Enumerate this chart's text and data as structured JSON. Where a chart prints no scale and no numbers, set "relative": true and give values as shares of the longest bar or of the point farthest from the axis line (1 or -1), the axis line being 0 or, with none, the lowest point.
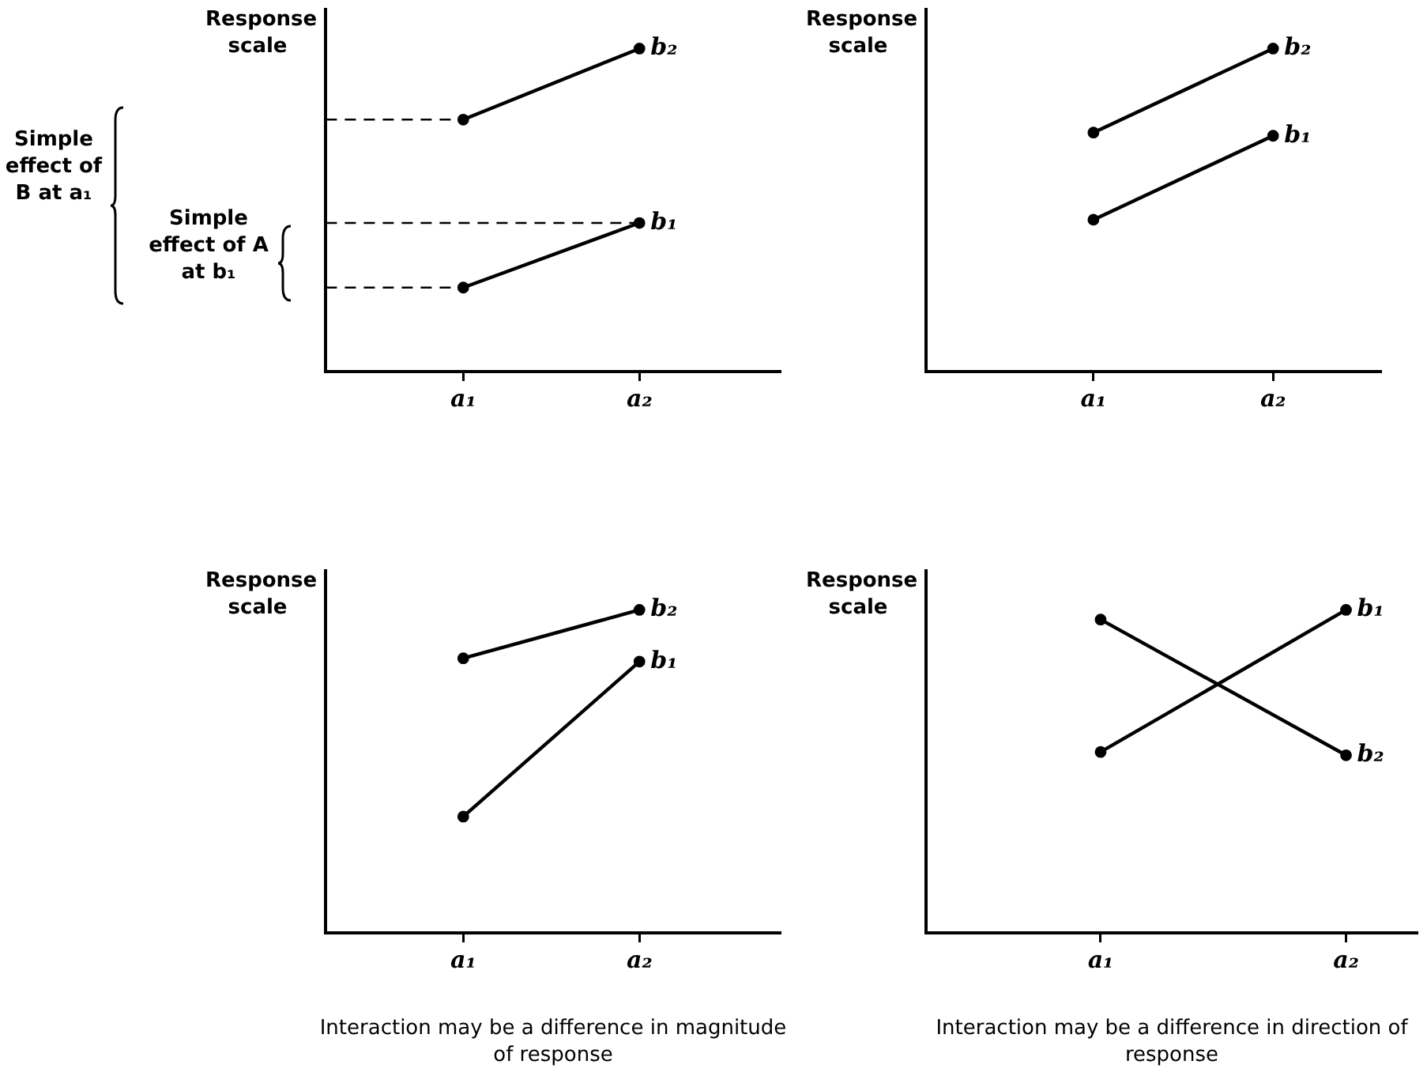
{
  "chart_data": [
    {
      "type": "line",
      "relative": true,
      "ylabel": "Response scale",
      "categories": [
        "a₁",
        "a₂"
      ],
      "legend": false,
      "grid": false,
      "marker": "circle",
      "line_style": "solid",
      "tick_labels": "x",
      "series": [
        {
          "name": "b₁",
          "color": "#000000",
          "values": [
            0.26,
            0.46
          ]
        },
        {
          "name": "b₂",
          "color": "#000000",
          "values": [
            0.78,
            1
          ]
        }
      ],
      "ref_lines": [
        {
          "axis": "y",
          "value": 0.78,
          "line_style": "dashed"
        },
        {
          "axis": "y",
          "value": 0.46,
          "line_style": "dashed"
        },
        {
          "axis": "y",
          "value": 0.26,
          "line_style": "dashed"
        }
      ],
      "annotations": [
        "Simple effect of B at a₁",
        "Simple effect of A at b₁"
      ]
    },
    {
      "type": "line",
      "relative": true,
      "ylabel": "Response scale",
      "categories": [
        "a₁",
        "a₂"
      ],
      "legend": false,
      "grid": false,
      "marker": "circle",
      "line_style": "solid",
      "tick_labels": "x",
      "series": [
        {
          "name": "b₁",
          "color": "#000000",
          "values": [
            0.47,
            0.73
          ]
        },
        {
          "name": "b₂",
          "color": "#000000",
          "values": [
            0.74,
            1
          ]
        }
      ]
    },
    {
      "type": "line",
      "relative": true,
      "ylabel": "Response scale",
      "categories": [
        "a₁",
        "a₂"
      ],
      "legend": false,
      "grid": false,
      "marker": "circle",
      "line_style": "solid",
      "tick_labels": "x",
      "series": [
        {
          "name": "b₁",
          "color": "#000000",
          "values": [
            0.36,
            0.84
          ]
        },
        {
          "name": "b₂",
          "color": "#000000",
          "values": [
            0.85,
            1
          ]
        }
      ],
      "annotations": [
        "Interaction may be a difference in magnitude of response"
      ]
    },
    {
      "type": "line",
      "relative": true,
      "ylabel": "Response scale",
      "categories": [
        "a₁",
        "a₂"
      ],
      "legend": false,
      "grid": false,
      "marker": "circle",
      "line_style": "solid",
      "tick_labels": "x",
      "series": [
        {
          "name": "b₁",
          "color": "#000000",
          "values": [
            0.56,
            1
          ]
        },
        {
          "name": "b₂",
          "color": "#000000",
          "values": [
            0.97,
            0.55
          ]
        }
      ],
      "annotations": [
        "Interaction may be a difference in direction of response"
      ]
    }
  ]
}
